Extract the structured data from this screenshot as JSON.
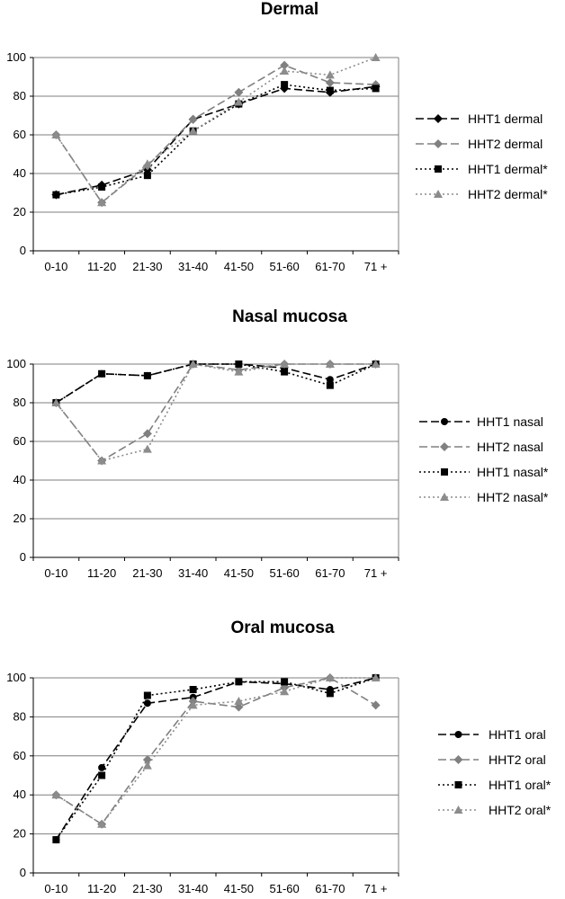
{
  "colors": {
    "HHT1": "#000000",
    "HHT2": "#808080",
    "HHT1_star": "#000000",
    "HHT2_star": "#8c8c8c",
    "grid": "#7f7f7f"
  },
  "chart_data": [
    {
      "type": "line",
      "title": "Dermal",
      "categories": [
        "0-10",
        "11-20",
        "21-30",
        "31-40",
        "41-50",
        "51-60",
        "61-70",
        "71 +"
      ],
      "ylim": [
        0,
        100
      ],
      "yticks": [
        "0",
        "20",
        "40",
        "60",
        "80",
        "100"
      ],
      "grid": true,
      "legend": "right",
      "series": [
        {
          "name": "HHT1 dermal",
          "marker": "diamond",
          "dash": "long",
          "color": "#000000",
          "values": [
            29,
            34,
            42,
            68,
            76,
            84,
            82,
            85
          ]
        },
        {
          "name": "HHT2 dermal",
          "marker": "diamond",
          "dash": "long",
          "color": "#808080",
          "values": [
            60,
            25,
            44,
            68,
            82,
            96,
            87,
            86
          ]
        },
        {
          "name": "HHT1 dermal*",
          "marker": "square",
          "dash": "dot",
          "color": "#000000",
          "values": [
            29,
            33,
            39,
            62,
            76,
            86,
            83,
            84
          ]
        },
        {
          "name": "HHT2 dermal*",
          "marker": "triangle",
          "dash": "dot",
          "color": "#8c8c8c",
          "values": [
            60,
            25,
            45,
            62,
            77,
            93,
            91,
            100
          ]
        }
      ]
    },
    {
      "type": "line",
      "title": "Nasal mucosa",
      "categories": [
        "0-10",
        "11-20",
        "21-30",
        "31-40",
        "41-50",
        "51-60",
        "61-70",
        "71 +"
      ],
      "ylim": [
        0,
        100
      ],
      "yticks": [
        "0",
        "20",
        "40",
        "60",
        "80",
        "100"
      ],
      "grid": true,
      "legend": "right",
      "series": [
        {
          "name": "HHT1 nasal",
          "marker": "circle",
          "dash": "long",
          "color": "#000000",
          "values": [
            80,
            95,
            94,
            100,
            100,
            98,
            92,
            100
          ]
        },
        {
          "name": "HHT2 nasal",
          "marker": "diamond",
          "dash": "long",
          "color": "#808080",
          "values": [
            80,
            50,
            64,
            100,
            97,
            100,
            100,
            100
          ]
        },
        {
          "name": "HHT1 nasal*",
          "marker": "square",
          "dash": "dot",
          "color": "#000000",
          "values": [
            80,
            95,
            94,
            100,
            100,
            96,
            89,
            100
          ]
        },
        {
          "name": "HHT2 nasal*",
          "marker": "triangle",
          "dash": "dot",
          "color": "#8c8c8c",
          "values": [
            80,
            50,
            56,
            100,
            96,
            100,
            100,
            100
          ]
        }
      ]
    },
    {
      "type": "line",
      "title": "Oral mucosa",
      "categories": [
        "0-10",
        "11-20",
        "21-30",
        "31-40",
        "41-50",
        "51-60",
        "61-70",
        "71 +"
      ],
      "ylim": [
        0,
        100
      ],
      "yticks": [
        "0",
        "20",
        "40",
        "60",
        "80",
        "100"
      ],
      "grid": true,
      "legend": "right",
      "series": [
        {
          "name": "HHT1 oral",
          "marker": "circle",
          "dash": "long",
          "color": "#000000",
          "values": [
            17,
            54,
            87,
            90,
            98,
            97,
            94,
            100
          ]
        },
        {
          "name": "HHT2 oral",
          "marker": "diamond",
          "dash": "long",
          "color": "#808080",
          "values": [
            40,
            25,
            58,
            88,
            85,
            95,
            100,
            86
          ]
        },
        {
          "name": "HHT1 oral*",
          "marker": "square",
          "dash": "dot",
          "color": "#000000",
          "values": [
            17,
            50,
            91,
            94,
            98,
            98,
            92,
            100
          ]
        },
        {
          "name": "HHT2 oral*",
          "marker": "triangle",
          "dash": "dot",
          "color": "#8c8c8c",
          "values": [
            40,
            25,
            55,
            86,
            88,
            93,
            100,
            100
          ]
        }
      ]
    }
  ]
}
